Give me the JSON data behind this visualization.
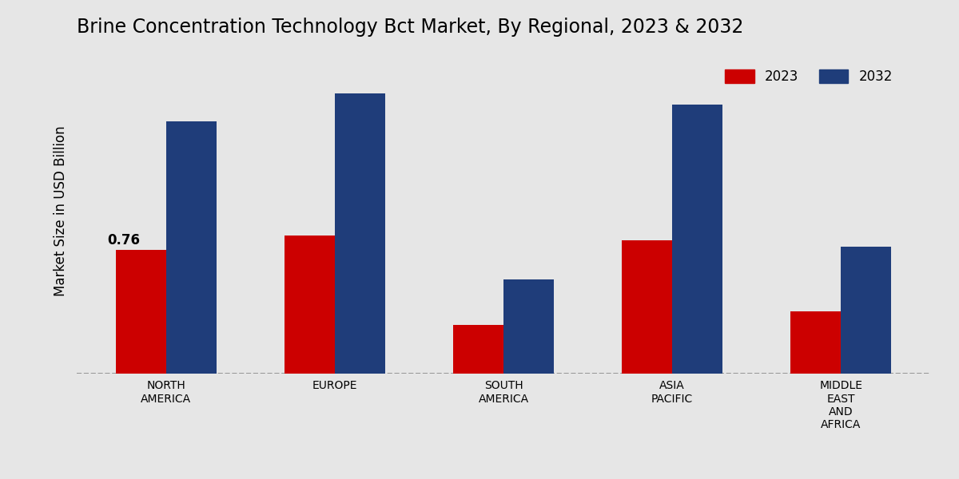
{
  "title": "Brine Concentration Technology Bct Market, By Regional, 2023 & 2032",
  "ylabel": "Market Size in USD Billion",
  "categories": [
    "NORTH\nAMERICA",
    "EUROPE",
    "SOUTH\nAMERICA",
    "ASIA\nPACIFIC",
    "MIDDLE\nEAST\nAND\nAFRICA"
  ],
  "values_2023": [
    0.76,
    0.85,
    0.3,
    0.82,
    0.38
  ],
  "values_2032": [
    1.55,
    1.72,
    0.58,
    1.65,
    0.78
  ],
  "color_2023": "#cc0000",
  "color_2032": "#1f3d7a",
  "annotation_value": "0.76",
  "background_color": "#e6e6e6",
  "bar_width": 0.3,
  "ylim": [
    0,
    2.0
  ],
  "legend_2023": "2023",
  "legend_2032": "2032",
  "title_fontsize": 17,
  "ylabel_fontsize": 12,
  "tick_fontsize": 10,
  "legend_fontsize": 12
}
